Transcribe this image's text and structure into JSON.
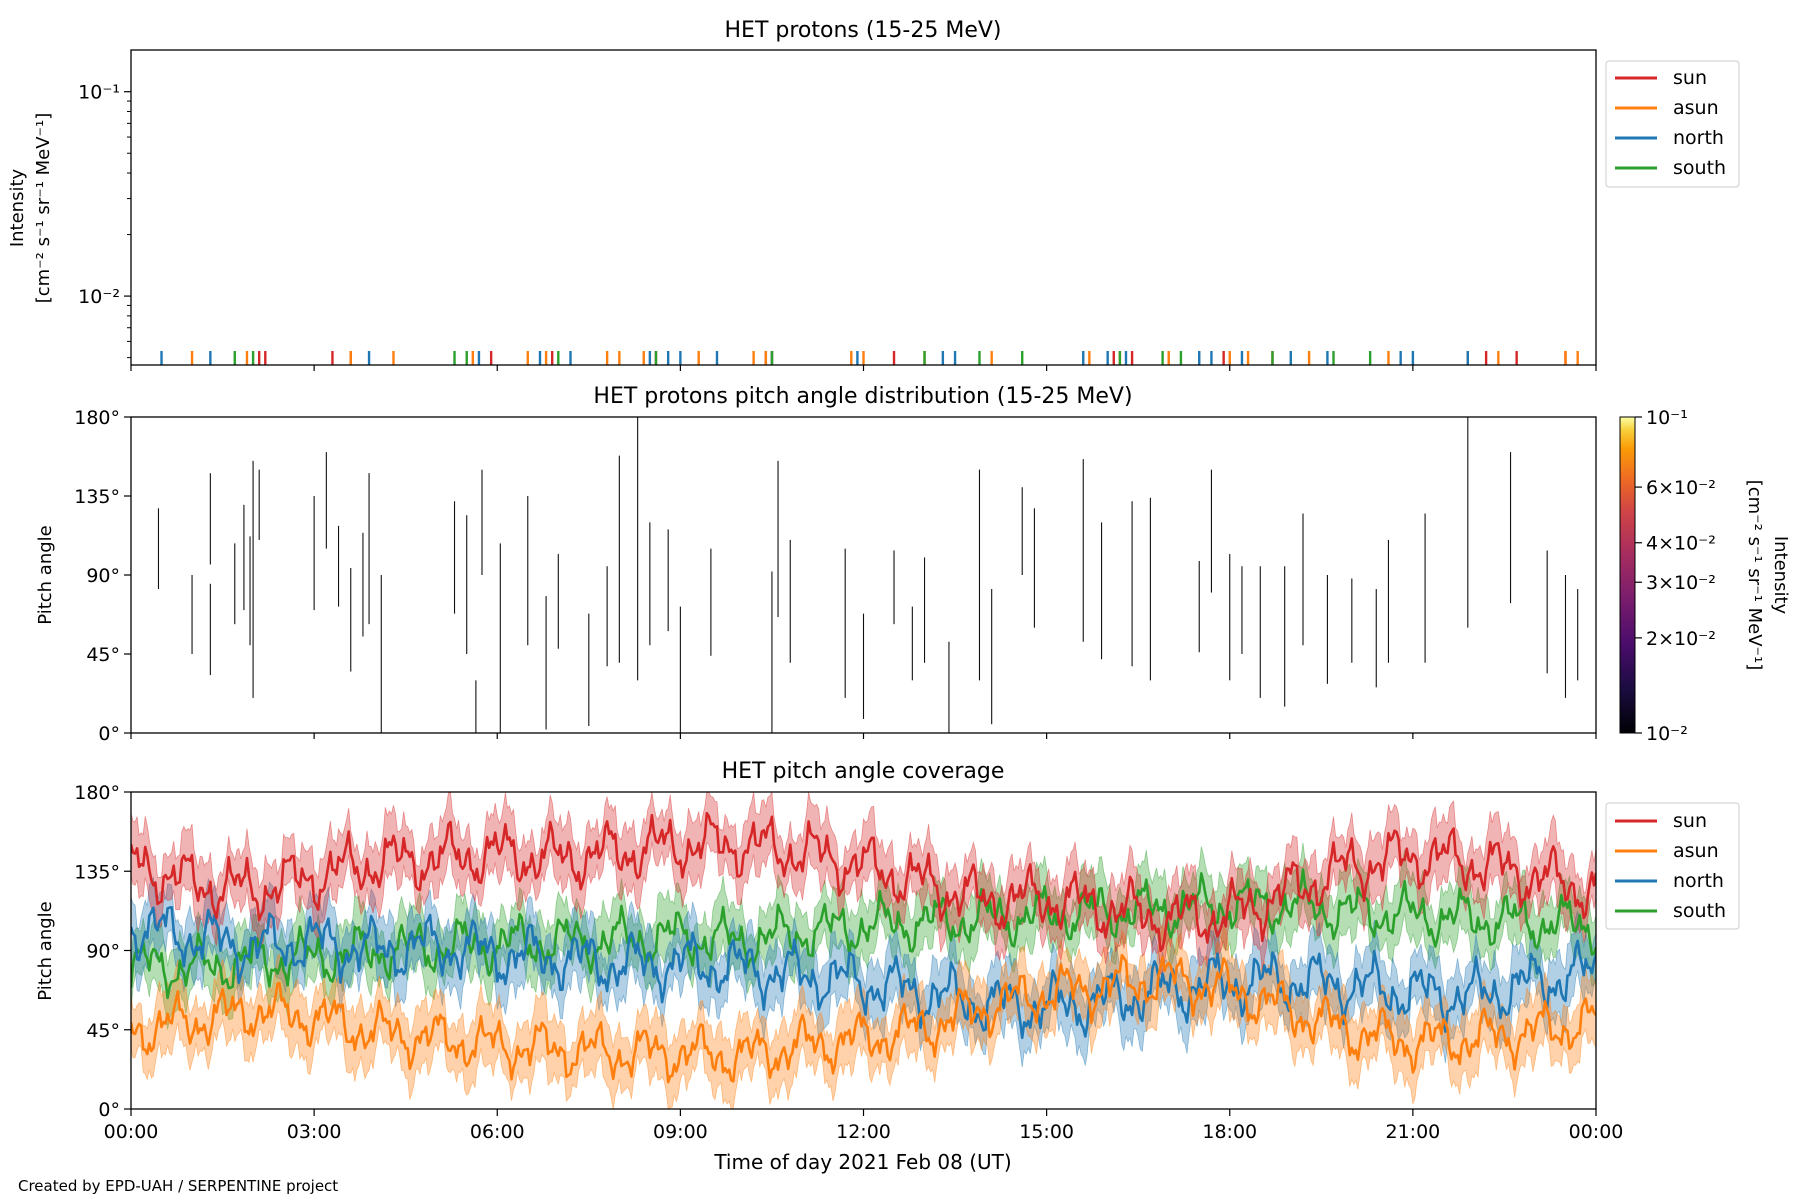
{
  "footer": "Created by EPD-UAH / SERPENTINE project",
  "colors": {
    "sun": "#d62728",
    "asun": "#ff7f0e",
    "north": "#1f77b4",
    "south": "#2ca02c"
  },
  "chart_data": [
    {
      "type": "line",
      "title": "HET protons (15-25 MeV)",
      "ylabel": "Intensity",
      "ylabel_units": "[cm⁻² s⁻¹ sr⁻¹ MeV⁻¹]",
      "yscale": "log",
      "ylim": [
        0.0046,
        0.16
      ],
      "yticks": [
        {
          "v": 0.1,
          "label": "10⁻¹"
        },
        {
          "v": 0.01,
          "label": "10⁻²"
        }
      ],
      "legend": [
        "sun",
        "asun",
        "north",
        "south"
      ],
      "legend_position": "outside-right",
      "series": [
        {
          "name": "sun",
          "events_hours": [
            2.1,
            2.2,
            3.3,
            3.6,
            5.9,
            6.9,
            8.6,
            10.4,
            10.5,
            12.5,
            16.1,
            16.4,
            17.9,
            18.7,
            21.9,
            22.2,
            22.7,
            23.5
          ]
        },
        {
          "name": "asun",
          "events_hours": [
            1.0,
            1.9,
            3.6,
            4.3,
            5.6,
            6.5,
            6.8,
            7.8,
            8.0,
            8.4,
            9.3,
            10.2,
            10.4,
            11.8,
            12.0,
            13.0,
            14.1,
            15.7,
            16.2,
            17.0,
            18.0,
            18.3,
            19.3,
            20.6,
            22.4,
            23.5,
            23.7
          ]
        },
        {
          "name": "north",
          "events_hours": [
            0.5,
            1.3,
            3.9,
            5.7,
            6.7,
            7.2,
            8.5,
            8.8,
            9.0,
            9.6,
            10.5,
            11.9,
            13.3,
            13.5,
            15.6,
            16.0,
            16.3,
            17.5,
            17.7,
            18.2,
            19.0,
            19.6,
            20.8,
            21.0,
            21.9
          ],
          "coverage_mean": [
            104,
            98,
            92,
            95,
            90,
            93,
            88,
            86,
            82,
            83,
            80,
            76,
            72,
            66,
            60,
            58,
            62,
            68,
            72,
            73,
            70,
            66,
            64,
            72,
            78
          ]
        },
        {
          "name": "south",
          "events_hours": [
            1.7,
            2.0,
            5.3,
            5.5,
            7.0,
            8.6,
            10.5,
            13.0,
            13.9,
            14.6,
            16.2,
            16.9,
            17.2,
            18.7,
            19.7,
            20.3
          ],
          "coverage_mean": [
            82,
            80,
            84,
            86,
            90,
            92,
            94,
            95,
            96,
            98,
            95,
            100,
            104,
            106,
            108,
            110,
            112,
            114,
            116,
            116,
            112,
            110,
            108,
            106,
            104
          ]
        }
      ],
      "sun_coverage_mean": [
        140,
        128,
        124,
        132,
        140,
        142,
        145,
        142,
        146,
        150,
        150,
        146,
        138,
        128,
        118,
        120,
        114,
        108,
        110,
        124,
        138,
        144,
        140,
        132,
        124
      ],
      "asun_coverage_mean": [
        44,
        50,
        56,
        52,
        44,
        40,
        36,
        34,
        32,
        32,
        30,
        36,
        40,
        46,
        58,
        66,
        70,
        74,
        68,
        56,
        44,
        38,
        40,
        44,
        50
      ]
    },
    {
      "type": "heatmap",
      "title": "HET protons pitch angle distribution (15-25 MeV)",
      "ylabel": "Pitch angle",
      "ylim": [
        0,
        180
      ],
      "yticks": [
        "0°",
        "45°",
        "90°",
        "135°",
        "180°"
      ],
      "colorbar": {
        "label": "Intensity",
        "units": "[cm⁻² s⁻¹ sr⁻¹ MeV⁻¹]",
        "scale": "log",
        "range": [
          0.01,
          0.1
        ],
        "ticks": [
          {
            "v": 0.1,
            "label": "10⁻¹"
          },
          {
            "v": 0.06,
            "label": "6×10⁻²"
          },
          {
            "v": 0.04,
            "label": "4×10⁻²"
          },
          {
            "v": 0.03,
            "label": "3×10⁻²"
          },
          {
            "v": 0.02,
            "label": "2×10⁻²"
          },
          {
            "v": 0.01,
            "label": "10⁻²"
          }
        ]
      },
      "events": [
        [
          0.45,
          82,
          128
        ],
        [
          1.0,
          45,
          90
        ],
        [
          1.3,
          33,
          85
        ],
        [
          1.3,
          96,
          148
        ],
        [
          1.7,
          62,
          108
        ],
        [
          1.85,
          70,
          130
        ],
        [
          1.95,
          50,
          112
        ],
        [
          2.0,
          20,
          155
        ],
        [
          2.1,
          110,
          150
        ],
        [
          3.0,
          70,
          135
        ],
        [
          3.2,
          105,
          160
        ],
        [
          3.4,
          72,
          118
        ],
        [
          3.6,
          35,
          94
        ],
        [
          3.8,
          55,
          114
        ],
        [
          3.9,
          62,
          148
        ],
        [
          4.1,
          0,
          90
        ],
        [
          5.3,
          68,
          132
        ],
        [
          5.5,
          45,
          124
        ],
        [
          5.65,
          0,
          30
        ],
        [
          5.75,
          90,
          150
        ],
        [
          6.05,
          0,
          108
        ],
        [
          6.5,
          50,
          135
        ],
        [
          6.8,
          2,
          78
        ],
        [
          7.0,
          48,
          102
        ],
        [
          7.5,
          4,
          68
        ],
        [
          7.8,
          38,
          95
        ],
        [
          8.0,
          40,
          158
        ],
        [
          8.3,
          30,
          180
        ],
        [
          8.5,
          50,
          120
        ],
        [
          8.8,
          58,
          116
        ],
        [
          9.0,
          0,
          72
        ],
        [
          9.5,
          44,
          105
        ],
        [
          10.5,
          0,
          92
        ],
        [
          10.6,
          66,
          155
        ],
        [
          10.8,
          40,
          110
        ],
        [
          11.7,
          20,
          105
        ],
        [
          12.0,
          8,
          68
        ],
        [
          12.5,
          62,
          104
        ],
        [
          12.8,
          30,
          72
        ],
        [
          13.0,
          40,
          100
        ],
        [
          13.4,
          0,
          52
        ],
        [
          13.9,
          30,
          150
        ],
        [
          14.1,
          5,
          82
        ],
        [
          14.6,
          90,
          140
        ],
        [
          14.8,
          60,
          128
        ],
        [
          15.6,
          52,
          156
        ],
        [
          15.9,
          42,
          120
        ],
        [
          16.4,
          38,
          132
        ],
        [
          16.7,
          30,
          134
        ],
        [
          17.5,
          46,
          98
        ],
        [
          17.7,
          80,
          150
        ],
        [
          18.0,
          30,
          102
        ],
        [
          18.2,
          45,
          95
        ],
        [
          18.5,
          20,
          95
        ],
        [
          18.9,
          15,
          95
        ],
        [
          19.2,
          50,
          125
        ],
        [
          19.6,
          28,
          90
        ],
        [
          20.0,
          40,
          88
        ],
        [
          20.4,
          26,
          82
        ],
        [
          20.6,
          40,
          110
        ],
        [
          21.2,
          40,
          125
        ],
        [
          21.9,
          60,
          180
        ],
        [
          22.6,
          74,
          160
        ],
        [
          23.2,
          34,
          104
        ],
        [
          23.5,
          20,
          90
        ],
        [
          23.7,
          30,
          82
        ]
      ]
    },
    {
      "type": "area",
      "title": "HET pitch angle coverage",
      "ylabel": "Pitch angle",
      "xlabel": "Time of day 2021 Feb 08 (UT)",
      "ylim": [
        0,
        180
      ],
      "yticks": [
        "0°",
        "45°",
        "90°",
        "135°",
        "180°"
      ],
      "xticks": [
        "00:00",
        "03:00",
        "06:00",
        "09:00",
        "12:00",
        "15:00",
        "18:00",
        "21:00",
        "00:00"
      ],
      "xlim_hours": [
        0,
        24
      ],
      "legend": [
        "sun",
        "asun",
        "north",
        "south"
      ],
      "legend_position": "outside-right"
    }
  ]
}
